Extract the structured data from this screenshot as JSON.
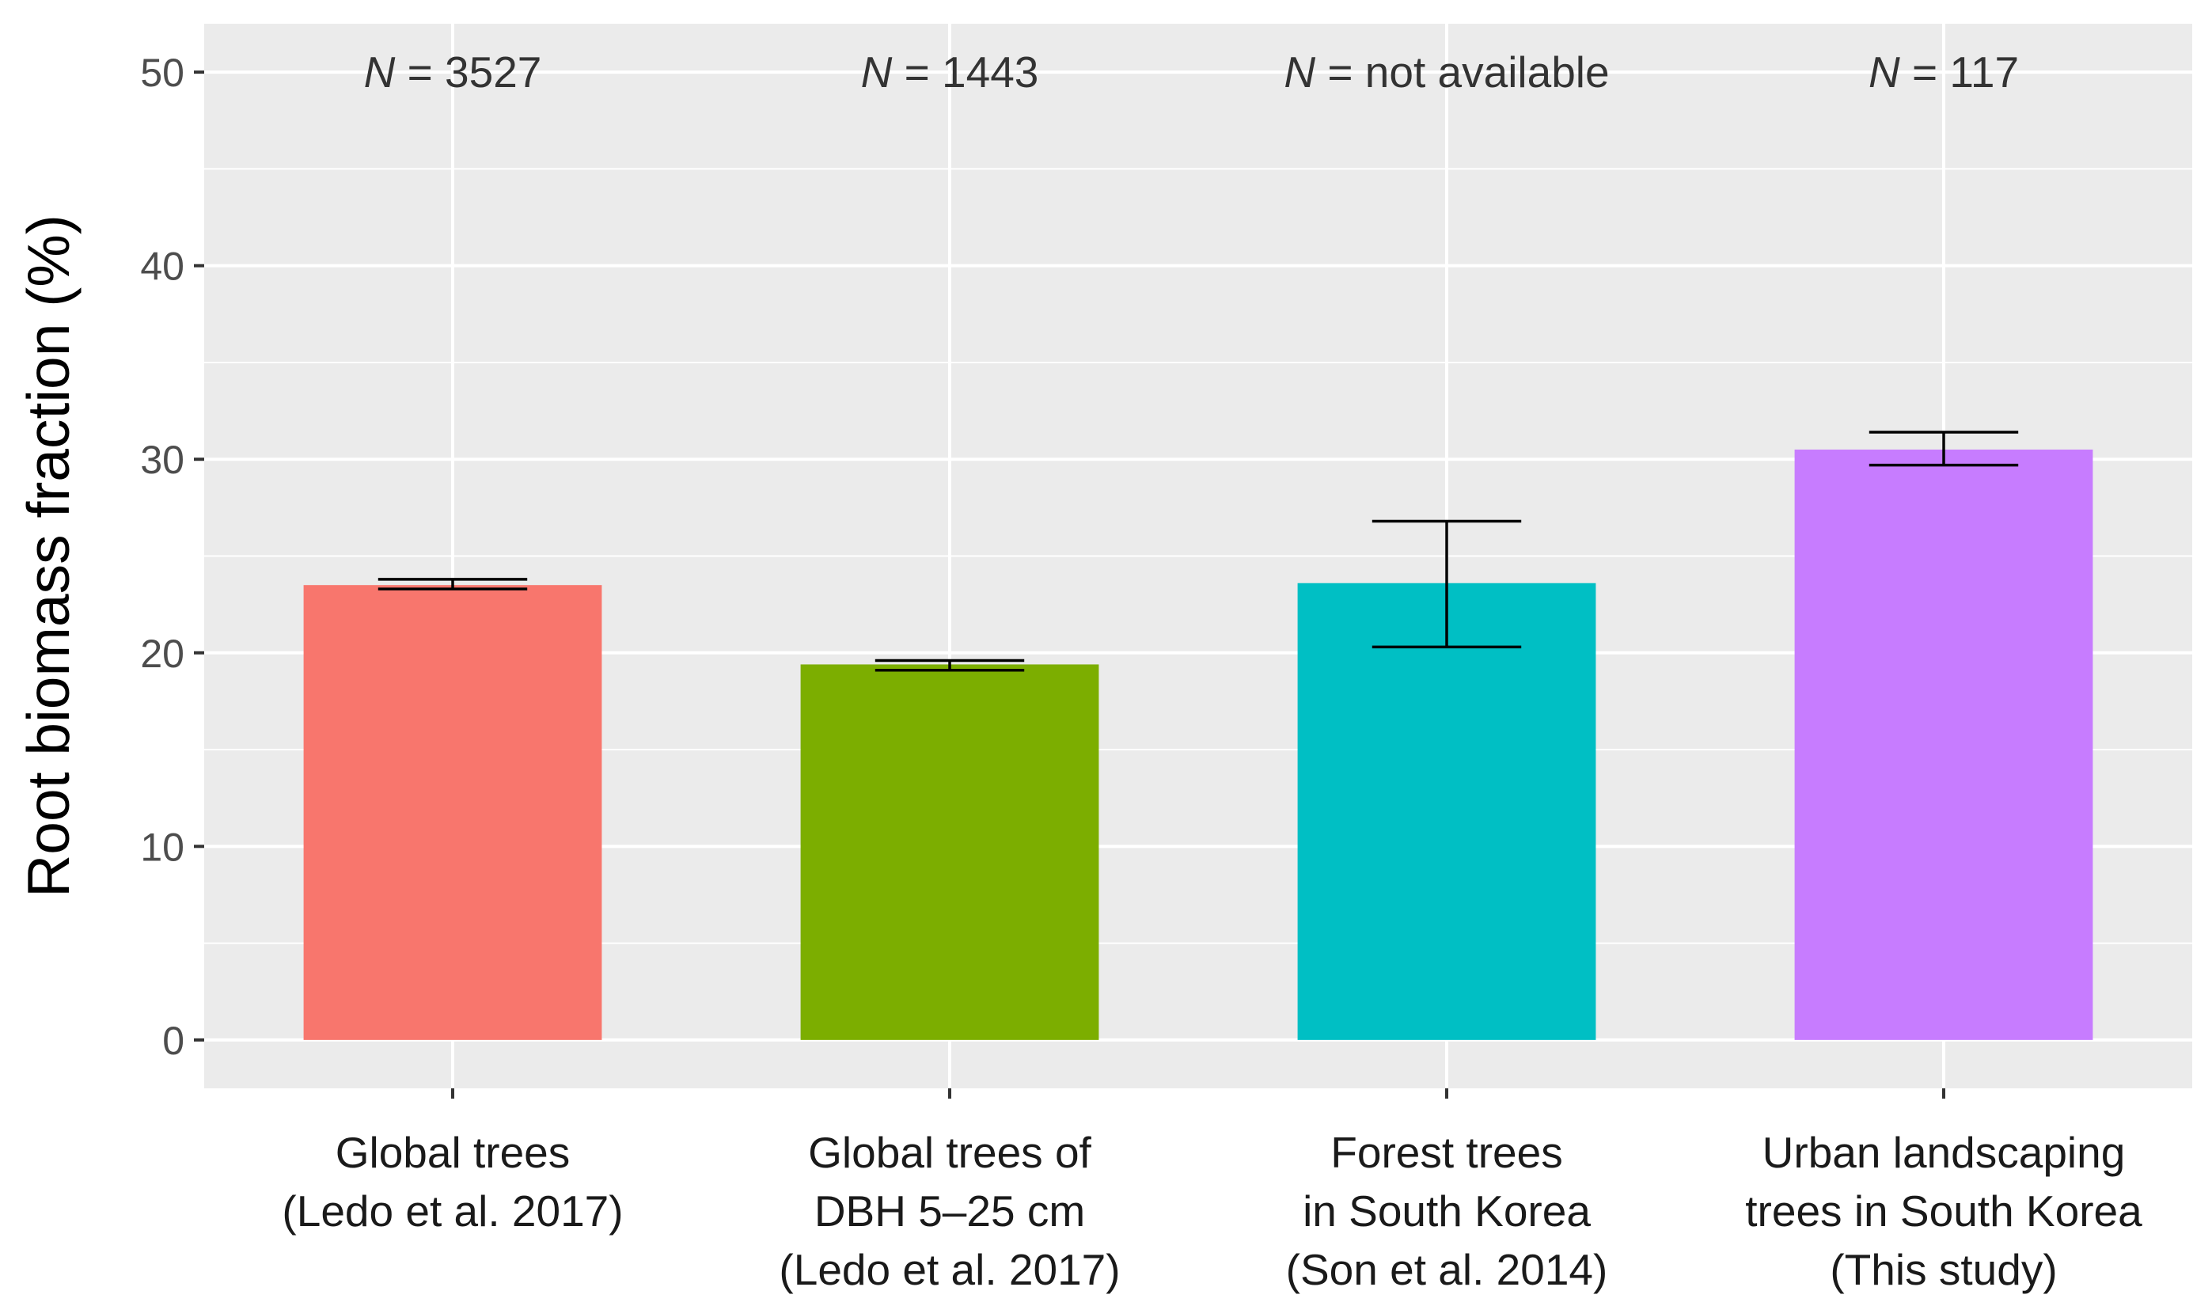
{
  "chart_data": {
    "type": "bar",
    "title": "",
    "xlabel": "",
    "ylabel": "Root biomass fraction (%)",
    "ylim": [
      -2.5,
      52.5
    ],
    "yticks": [
      0,
      10,
      20,
      30,
      40,
      50
    ],
    "grid": true,
    "legend": "none",
    "categories": [
      [
        "Global trees",
        "(Ledo et al. 2017)"
      ],
      [
        "Global trees of",
        "DBH 5–25 cm",
        "(Ledo et al. 2017)"
      ],
      [
        "Forest trees",
        "in South Korea",
        "(Son et al. 2014)"
      ],
      [
        "Urban landscaping",
        "trees in South Korea",
        "(This study)"
      ]
    ],
    "values": [
      23.5,
      19.4,
      23.6,
      30.5
    ],
    "error_low": [
      23.3,
      19.1,
      20.3,
      29.7
    ],
    "error_high": [
      23.8,
      19.6,
      26.8,
      31.4
    ],
    "colors": [
      "#F8766D",
      "#7CAE00",
      "#00BFC4",
      "#C77CFF"
    ],
    "n_labels": [
      {
        "prefix": "N",
        "text": " = 3527"
      },
      {
        "prefix": "N",
        "text": " = 1443"
      },
      {
        "prefix": "N",
        "text": " = not available"
      },
      {
        "prefix": "N",
        "text": " = 117"
      }
    ],
    "panel_background": "#EBEBEB",
    "grid_color": "#FFFFFF"
  }
}
